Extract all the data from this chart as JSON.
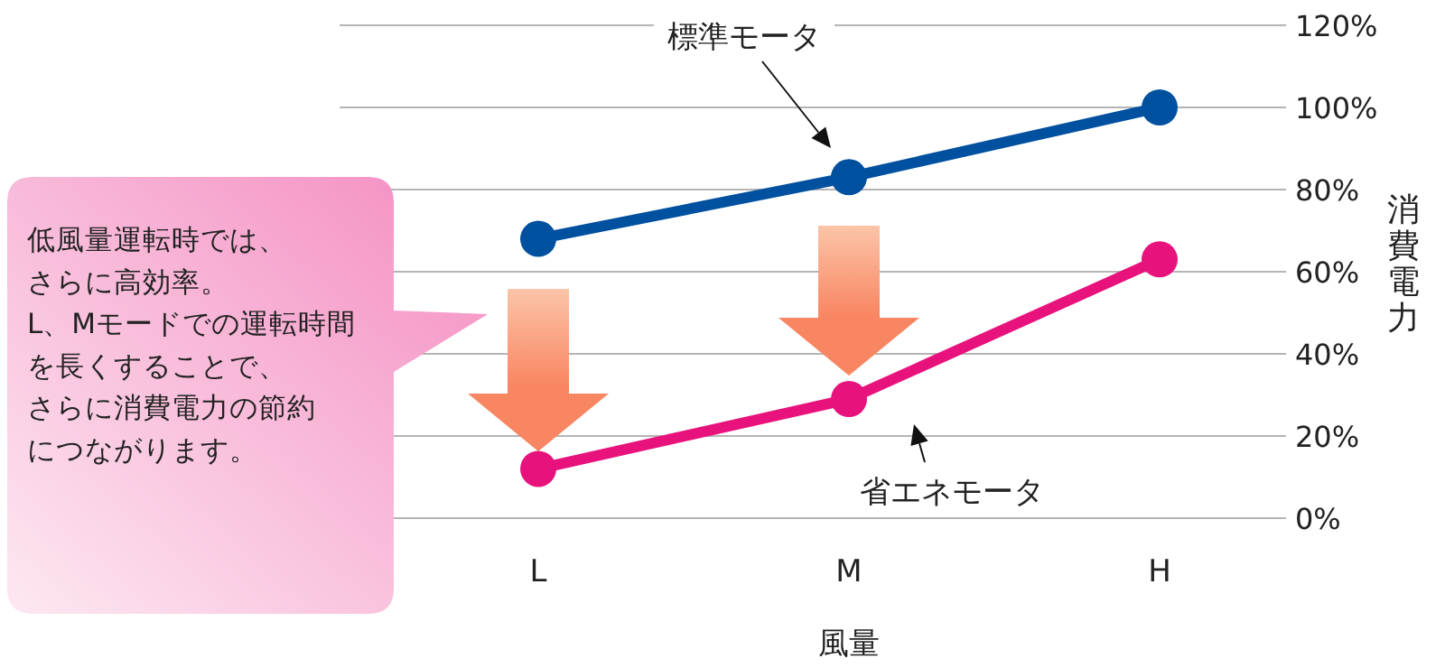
{
  "chart_data": {
    "type": "line",
    "categories": [
      "L",
      "M",
      "H"
    ],
    "series": [
      {
        "name": "標準モータ",
        "color": "#0050a0",
        "values": [
          68,
          83,
          100
        ]
      },
      {
        "name": "省エネモータ",
        "color": "#e8127c",
        "values": [
          12,
          29,
          63
        ]
      }
    ],
    "ylim": [
      0,
      120
    ],
    "yticks": [
      {
        "value": 0,
        "label": "0%"
      },
      {
        "value": 20,
        "label": "20%"
      },
      {
        "value": 40,
        "label": "40%"
      },
      {
        "value": 60,
        "label": "60%"
      },
      {
        "value": 80,
        "label": "80%"
      },
      {
        "value": 100,
        "label": "100%"
      },
      {
        "value": 120,
        "label": "120%"
      }
    ],
    "xlabel": "風量",
    "ylabel": "消費電力",
    "grid": "y",
    "legend": false,
    "marker": "circle",
    "line_style": "solid",
    "annotations": [
      "低風量運転時では、",
      "さらに高効率。",
      "L、Mモードでの運転時間",
      "を長くすることで、",
      "さらに消費電力の節約",
      "につながります。"
    ]
  }
}
